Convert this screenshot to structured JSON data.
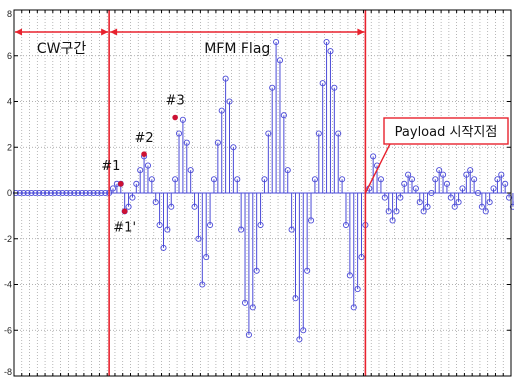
{
  "colors": {
    "signal": "#4b4bd8",
    "highlight": "#cc1133",
    "boundary": "#e8222e",
    "grid": "#9a9a9a",
    "axis": "#000000"
  },
  "chart_data": {
    "type": "stem",
    "xlim": [
      0,
      128
    ],
    "ylim": [
      -8,
      8
    ],
    "yticks": [
      -8,
      -6,
      -4,
      -2,
      0,
      2,
      4,
      6,
      8
    ],
    "ytick_labels": [
      "-8",
      "-6",
      "-4",
      "-2",
      "0",
      "2",
      "4",
      "6",
      "8"
    ],
    "x_grid_step": 2,
    "y_grid_step": 2,
    "grid": true,
    "regions": [
      {
        "label": "CW구간",
        "x_start": 0,
        "x_end": 24.5
      },
      {
        "label": "MFM Flag",
        "x_start": 24.5,
        "x_end": 90.5
      }
    ],
    "boundaries": [
      24.5,
      90.5
    ],
    "callout": {
      "label": "Payload 시작지점",
      "x": 90.5,
      "y": 0
    },
    "markers": [
      {
        "label": "#1",
        "x": 27,
        "y": 0.4
      },
      {
        "label": "#1'",
        "x": 28,
        "y": -0.8
      },
      {
        "label": "#2",
        "x": 33,
        "y": 1.7
      },
      {
        "label": "#3",
        "x": 41,
        "y": 3.3
      }
    ],
    "series": [
      {
        "values": [
          0,
          0,
          0,
          0,
          0,
          0,
          0,
          0,
          0,
          0,
          0,
          0,
          0,
          0,
          0,
          0,
          0,
          0,
          0,
          0,
          0,
          0,
          0,
          0,
          0,
          0.2,
          0.4,
          0.4,
          -0.8,
          -0.6,
          -0.2,
          0.4,
          1.0,
          1.6,
          1.2,
          0.6,
          -0.4,
          -1.4,
          -2.4,
          -1.6,
          -0.6,
          0.6,
          2.6,
          3.2,
          2.2,
          1.0,
          -0.6,
          -2.0,
          -4.0,
          -2.8,
          -1.4,
          0.6,
          2.2,
          3.6,
          5.0,
          4.0,
          2.0,
          0.6,
          -1.6,
          -4.8,
          -6.2,
          -5.0,
          -3.4,
          -1.4,
          0.6,
          2.6,
          4.6,
          6.6,
          5.8,
          3.4,
          1.0,
          -1.6,
          -4.6,
          -6.4,
          -6.0,
          -3.4,
          -1.2,
          0.6,
          2.6,
          4.8,
          6.6,
          6.2,
          4.6,
          2.6,
          0.6,
          -1.4,
          -3.6,
          -5.0,
          -4.2,
          -2.8,
          -1.4,
          0.2,
          1.6,
          1.2,
          0.6,
          -0.2,
          -0.8,
          -1.2,
          -0.8,
          -0.2,
          0.4,
          0.8,
          0.6,
          0.2,
          -0.4,
          -0.8,
          -0.6,
          0.0,
          0.6,
          1.0,
          0.8,
          0.4,
          -0.2,
          -0.6,
          -0.4,
          0.2,
          0.8,
          1.0,
          0.6,
          0.0,
          -0.6,
          -0.8,
          -0.4,
          0.2,
          0.6,
          0.8,
          0.4,
          -0.2,
          -0.6,
          -0.4
        ]
      }
    ]
  }
}
